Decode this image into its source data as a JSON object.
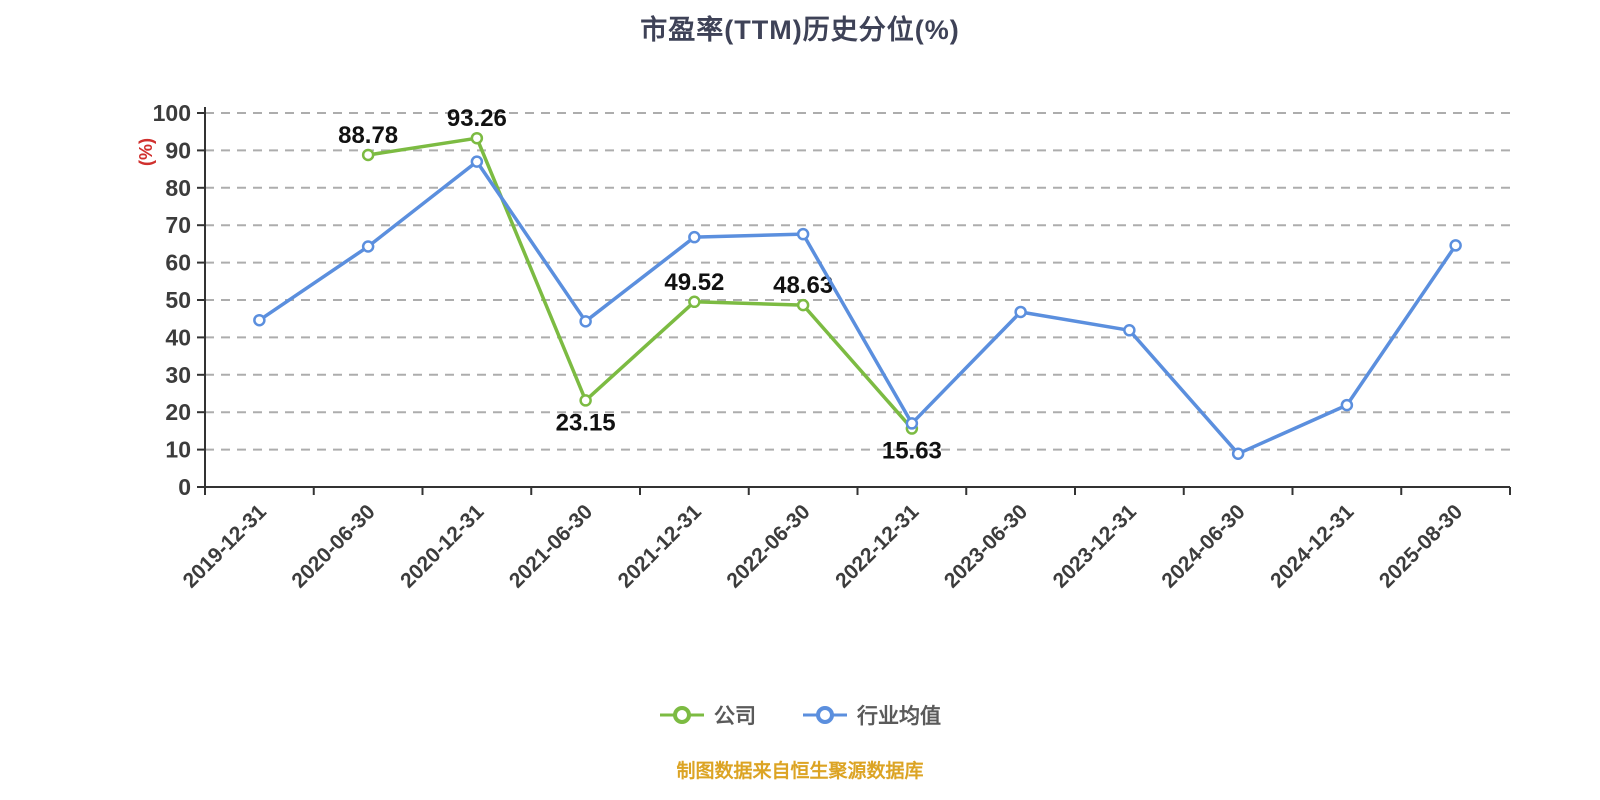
{
  "caption": "制图数据来自恒生聚源数据库",
  "chart_data": {
    "type": "line",
    "title": "市盈率(TTM)历史分位(%)",
    "xlabel": "",
    "ylabel": "(%)",
    "ylabel_color": "#d0302e",
    "ylim": [
      0,
      100
    ],
    "y_ticks": [
      0,
      10,
      20,
      30,
      40,
      50,
      60,
      70,
      80,
      90,
      100
    ],
    "grid": true,
    "grid_style": "dashed",
    "legend_position": "bottom",
    "x": [
      "2019-12-31",
      "2020-06-30",
      "2020-12-31",
      "2021-06-30",
      "2021-12-31",
      "2022-06-30",
      "2022-12-31",
      "2023-06-30",
      "2023-12-31",
      "2024-06-30",
      "2024-12-31",
      "2025-08-30"
    ],
    "series": [
      {
        "name": "公司",
        "color": "#7cbb42",
        "show_labels": true,
        "label_below": [
          3,
          6
        ],
        "values": [
          null,
          88.78,
          93.26,
          23.15,
          49.52,
          48.63,
          15.63,
          null,
          null,
          null,
          null,
          null
        ]
      },
      {
        "name": "行业均值",
        "color": "#5b8fde",
        "show_labels": false,
        "label_below": [],
        "values": [
          44.6,
          64.3,
          87.0,
          44.3,
          66.8,
          67.6,
          17.0,
          46.8,
          41.9,
          8.9,
          21.9,
          64.6
        ]
      }
    ]
  }
}
